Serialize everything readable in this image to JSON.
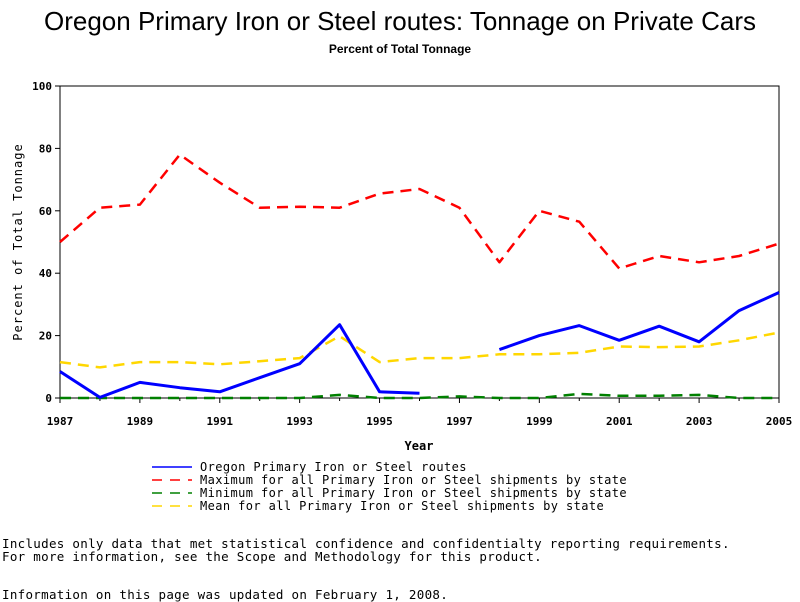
{
  "chart_data": {
    "type": "line",
    "title": "Oregon Primary Iron or Steel routes: Tonnage on Private Cars",
    "subtitle": "Percent of Total Tonnage",
    "xlabel": "Year",
    "ylabel": "Percent of Total Tonnage",
    "xlim": [
      1987,
      2005
    ],
    "ylim": [
      0,
      100
    ],
    "xticks": [
      1987,
      1989,
      1991,
      1993,
      1995,
      1997,
      1999,
      2001,
      2003,
      2005
    ],
    "yticks": [
      0,
      20,
      40,
      60,
      80,
      100
    ],
    "grid": false,
    "legend_position": "bottom",
    "series": [
      {
        "name": "Oregon Primary Iron or Steel routes",
        "color": "#0000ff",
        "style": "solid",
        "points": [
          [
            1987,
            8.5
          ],
          [
            1988,
            0.2
          ],
          [
            1989,
            5
          ],
          [
            1990,
            3.3
          ],
          [
            1991,
            2
          ],
          [
            1992,
            6.5
          ],
          [
            1993,
            11
          ],
          [
            1994,
            23.5
          ],
          [
            1995,
            2
          ],
          [
            1996,
            1.5
          ],
          [
            1998,
            15.5
          ],
          [
            1999,
            20
          ],
          [
            2000,
            23.2
          ],
          [
            2001,
            18.5
          ],
          [
            2002,
            23
          ],
          [
            2003,
            18
          ],
          [
            2004,
            28
          ],
          [
            2005,
            33.8
          ]
        ],
        "gaps_after": [
          1996
        ]
      },
      {
        "name": "Maximum for all Primary Iron or Steel shipments by state",
        "color": "#ff0000",
        "style": "dashed",
        "points": [
          [
            1987,
            50
          ],
          [
            1988,
            61
          ],
          [
            1989,
            62
          ],
          [
            1990,
            78
          ],
          [
            1991,
            69
          ],
          [
            1992,
            61
          ],
          [
            1993,
            61.3
          ],
          [
            1994,
            61
          ],
          [
            1995,
            65.5
          ],
          [
            1996,
            67
          ],
          [
            1997,
            61
          ],
          [
            1998,
            43.5
          ],
          [
            1999,
            60
          ],
          [
            2000,
            56.5
          ],
          [
            2001,
            41.5
          ],
          [
            2002,
            45.5
          ],
          [
            2003,
            43.5
          ],
          [
            2004,
            45.5
          ],
          [
            2005,
            49.5
          ]
        ]
      },
      {
        "name": "Minimum for all Primary Iron or Steel shipments by state",
        "color": "#008000",
        "style": "dashed",
        "points": [
          [
            1987,
            0
          ],
          [
            1988,
            0
          ],
          [
            1989,
            0
          ],
          [
            1990,
            0
          ],
          [
            1991,
            0
          ],
          [
            1992,
            0
          ],
          [
            1993,
            0
          ],
          [
            1994,
            1
          ],
          [
            1995,
            0
          ],
          [
            1996,
            0
          ],
          [
            1997,
            0.5
          ],
          [
            1998,
            0
          ],
          [
            1999,
            0
          ],
          [
            2000,
            1.3
          ],
          [
            2001,
            0.7
          ],
          [
            2002,
            0.7
          ],
          [
            2003,
            1
          ],
          [
            2004,
            0
          ],
          [
            2005,
            0
          ]
        ]
      },
      {
        "name": "Mean for all Primary Iron or Steel shipments by state",
        "color": "#ffd700",
        "style": "dashed",
        "points": [
          [
            1987,
            11.5
          ],
          [
            1988,
            9.8
          ],
          [
            1989,
            11.5
          ],
          [
            1990,
            11.5
          ],
          [
            1991,
            10.8
          ],
          [
            1992,
            11.8
          ],
          [
            1993,
            12.8
          ],
          [
            1994,
            19.8
          ],
          [
            1995,
            11.5
          ],
          [
            1996,
            12.8
          ],
          [
            1997,
            12.8
          ],
          [
            1998,
            14
          ],
          [
            1999,
            14
          ],
          [
            2000,
            14.5
          ],
          [
            2001,
            16.5
          ],
          [
            2002,
            16.3
          ],
          [
            2003,
            16.5
          ],
          [
            2004,
            18.5
          ],
          [
            2005,
            21
          ]
        ]
      }
    ]
  },
  "notes": {
    "line1": "Includes only data that met statistical confidence and confidentialty reporting requirements.",
    "line2": "For more information, see the Scope and Methodology for this product.",
    "updated": "Information on this page was updated on February 1, 2008."
  }
}
